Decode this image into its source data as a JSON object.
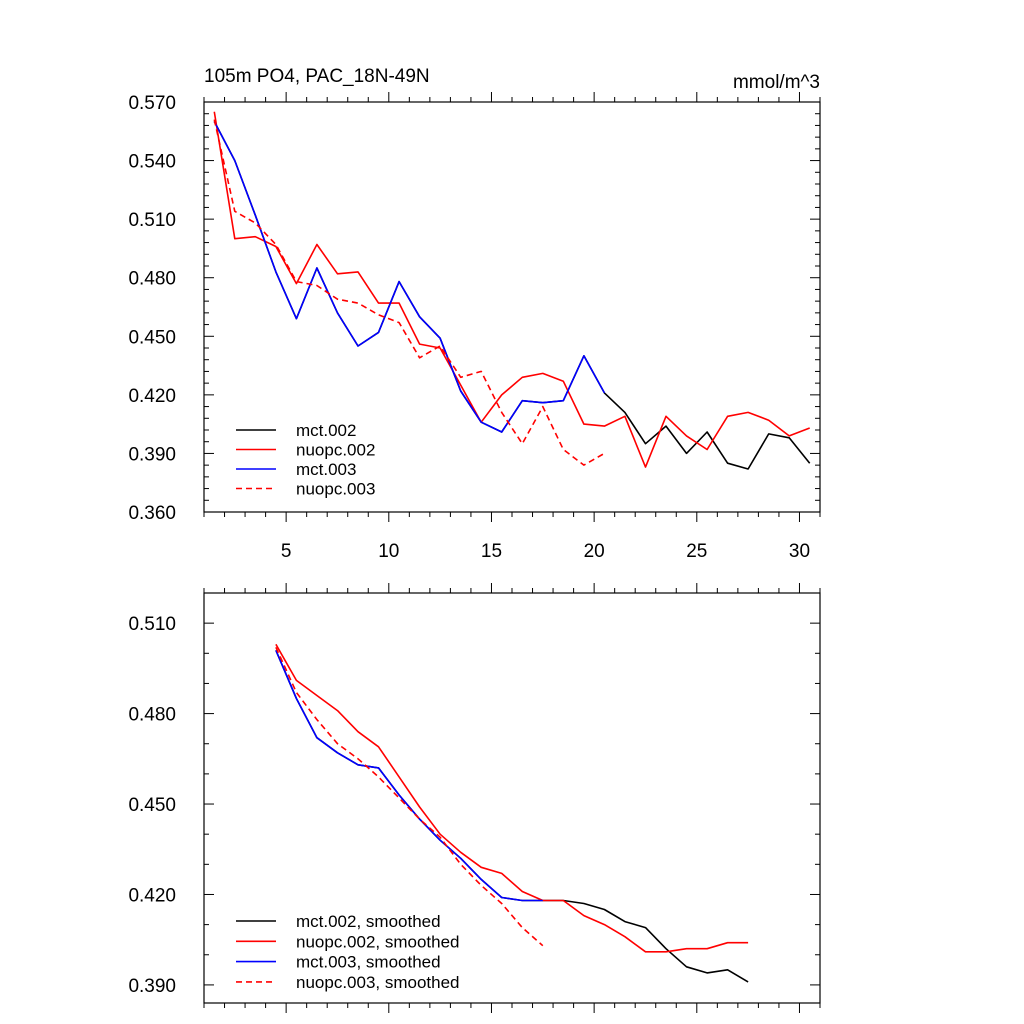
{
  "chart_data": [
    {
      "type": "line",
      "title": "105m PO4, PAC_18N-49N",
      "units": "mmol/m^3",
      "xlabel": "",
      "ylabel": "",
      "xlim": [
        1,
        31
      ],
      "ylim": [
        0.36,
        0.57
      ],
      "xticks": [
        5,
        10,
        15,
        20,
        25,
        30
      ],
      "yticks": [
        0.36,
        0.39,
        0.42,
        0.45,
        0.48,
        0.51,
        0.54,
        0.57
      ],
      "ytick_labels": [
        "0.360",
        "0.390",
        "0.420",
        "0.450",
        "0.480",
        "0.510",
        "0.540",
        "0.570"
      ],
      "legend_position": "bottom-left",
      "series": [
        {
          "name": "mct.002",
          "color": "#000000",
          "dash": "solid",
          "x": [
            1.5,
            2.5,
            3.5,
            4.5,
            5.5,
            6.5,
            7.5,
            8.5,
            9.5,
            10.5,
            11.5,
            12.5,
            13.5,
            14.5,
            15.5,
            16.5,
            17.5,
            18.5,
            19.5,
            20.5,
            21.5,
            22.5,
            23.5,
            24.5,
            25.5,
            26.5,
            27.5,
            28.5,
            29.5,
            30.5
          ],
          "values": [
            0.56,
            0.54,
            0.512,
            0.483,
            0.459,
            0.485,
            0.462,
            0.445,
            0.452,
            0.478,
            0.46,
            0.449,
            0.422,
            0.406,
            0.401,
            0.417,
            0.416,
            0.417,
            0.44,
            0.421,
            0.411,
            0.395,
            0.404,
            0.39,
            0.401,
            0.385,
            0.382,
            0.4,
            0.398,
            0.385
          ]
        },
        {
          "name": "nuopc.002",
          "color": "#ff0000",
          "dash": "solid",
          "x": [
            1.5,
            2.5,
            3.5,
            4.5,
            5.5,
            6.5,
            7.5,
            8.5,
            9.5,
            10.5,
            11.5,
            12.5,
            13.5,
            14.5,
            15.5,
            16.5,
            17.5,
            18.5,
            19.5,
            20.5,
            21.5,
            22.5,
            23.5,
            24.5,
            25.5,
            26.5,
            27.5,
            28.5,
            29.5,
            30.5
          ],
          "values": [
            0.565,
            0.5,
            0.501,
            0.496,
            0.477,
            0.497,
            0.482,
            0.483,
            0.467,
            0.467,
            0.446,
            0.444,
            0.425,
            0.406,
            0.42,
            0.429,
            0.431,
            0.427,
            0.405,
            0.404,
            0.409,
            0.383,
            0.409,
            0.399,
            0.392,
            0.409,
            0.411,
            0.407,
            0.399,
            0.403
          ]
        },
        {
          "name": "mct.003",
          "color": "#0000ff",
          "dash": "solid",
          "x": [
            1.5,
            2.5,
            3.5,
            4.5,
            5.5,
            6.5,
            7.5,
            8.5,
            9.5,
            10.5,
            11.5,
            12.5,
            13.5,
            14.5,
            15.5,
            16.5,
            17.5,
            18.5,
            19.5,
            20.5
          ],
          "values": [
            0.56,
            0.54,
            0.512,
            0.483,
            0.459,
            0.485,
            0.462,
            0.445,
            0.452,
            0.478,
            0.46,
            0.449,
            0.422,
            0.406,
            0.401,
            0.417,
            0.416,
            0.417,
            0.44,
            0.421
          ]
        },
        {
          "name": "nuopc.003",
          "color": "#ff0000",
          "dash": "dashed",
          "x": [
            1.5,
            2.5,
            3.5,
            4.5,
            5.5,
            6.5,
            7.5,
            8.5,
            9.5,
            10.5,
            11.5,
            12.5,
            13.5,
            14.5,
            15.5,
            16.5,
            17.5,
            18.5,
            19.5,
            20.5
          ],
          "values": [
            0.561,
            0.514,
            0.508,
            0.497,
            0.478,
            0.476,
            0.469,
            0.467,
            0.461,
            0.457,
            0.439,
            0.445,
            0.429,
            0.432,
            0.411,
            0.395,
            0.414,
            0.392,
            0.384,
            0.39
          ]
        }
      ]
    },
    {
      "type": "line",
      "title": "",
      "xlabel": "",
      "ylabel": "",
      "xlim": [
        1,
        31
      ],
      "ylim": [
        0.384,
        0.52
      ],
      "xticks": [
        5,
        10,
        15,
        20,
        25,
        30
      ],
      "yticks": [
        0.39,
        0.42,
        0.45,
        0.48,
        0.51
      ],
      "ytick_labels": [
        "0.390",
        "0.420",
        "0.450",
        "0.480",
        "0.510"
      ],
      "legend_position": "bottom-left",
      "series": [
        {
          "name": "mct.002, smoothed",
          "color": "#000000",
          "dash": "solid",
          "x": [
            4.5,
            5.5,
            6.5,
            7.5,
            8.5,
            9.5,
            10.5,
            11.5,
            12.5,
            13.5,
            14.5,
            15.5,
            16.5,
            17.5,
            18.5,
            19.5,
            20.5,
            21.5,
            22.5,
            23.5,
            24.5,
            25.5,
            26.5,
            27.5
          ],
          "values": [
            0.501,
            0.485,
            0.472,
            0.467,
            0.463,
            0.462,
            0.453,
            0.445,
            0.438,
            0.432,
            0.425,
            0.419,
            0.418,
            0.418,
            0.418,
            0.417,
            0.415,
            0.411,
            0.409,
            0.402,
            0.396,
            0.394,
            0.395,
            0.391
          ]
        },
        {
          "name": "nuopc.002, smoothed",
          "color": "#ff0000",
          "dash": "solid",
          "x": [
            4.5,
            5.5,
            6.5,
            7.5,
            8.5,
            9.5,
            10.5,
            11.5,
            12.5,
            13.5,
            14.5,
            15.5,
            16.5,
            17.5,
            18.5,
            19.5,
            20.5,
            21.5,
            22.5,
            23.5,
            24.5,
            25.5,
            26.5,
            27.5
          ],
          "values": [
            0.503,
            0.491,
            0.486,
            0.481,
            0.474,
            0.469,
            0.459,
            0.449,
            0.44,
            0.434,
            0.429,
            0.427,
            0.421,
            0.418,
            0.418,
            0.413,
            0.41,
            0.406,
            0.401,
            0.401,
            0.402,
            0.402,
            0.404,
            0.404
          ]
        },
        {
          "name": "mct.003, smoothed",
          "color": "#0000ff",
          "dash": "solid",
          "x": [
            4.5,
            5.5,
            6.5,
            7.5,
            8.5,
            9.5,
            10.5,
            11.5,
            12.5,
            13.5,
            14.5,
            15.5,
            16.5,
            17.5
          ],
          "values": [
            0.501,
            0.485,
            0.472,
            0.467,
            0.463,
            0.462,
            0.453,
            0.445,
            0.438,
            0.432,
            0.425,
            0.419,
            0.418,
            0.418
          ]
        },
        {
          "name": "nuopc.003, smoothed",
          "color": "#ff0000",
          "dash": "dashed",
          "x": [
            4.5,
            5.5,
            6.5,
            7.5,
            8.5,
            9.5,
            10.5,
            11.5,
            12.5,
            13.5,
            14.5,
            15.5,
            16.5,
            17.5
          ],
          "values": [
            0.502,
            0.487,
            0.478,
            0.47,
            0.465,
            0.459,
            0.452,
            0.445,
            0.439,
            0.43,
            0.423,
            0.417,
            0.409,
            0.403
          ]
        }
      ]
    }
  ]
}
